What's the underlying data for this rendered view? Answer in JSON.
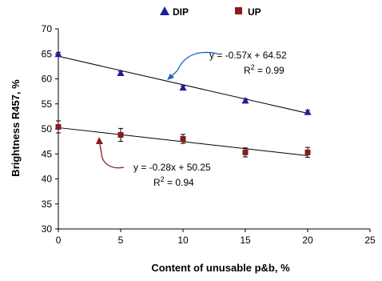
{
  "chart_data": {
    "type": "scatter",
    "xlabel": "Content of unusable p&b, %",
    "ylabel": "Brightness R457, %",
    "xlim": [
      0,
      25
    ],
    "ylim": [
      30,
      70
    ],
    "xticks": [
      "0",
      "5",
      "10",
      "15",
      "20",
      "25"
    ],
    "yticks": [
      "30",
      "35",
      "40",
      "45",
      "50",
      "55",
      "60",
      "65",
      "70"
    ],
    "legend_position": "top",
    "series": [
      {
        "name": "DIP",
        "marker": "triangle",
        "color": "#1f1f99",
        "x": [
          0,
          5,
          10,
          15,
          20
        ],
        "y": [
          65.0,
          61.2,
          58.3,
          55.7,
          53.4
        ],
        "error": [
          0.3,
          0.3,
          0.3,
          0.3,
          0.3
        ],
        "trend": {
          "slope": -0.57,
          "intercept": 64.52
        },
        "equation": "y = -0.57x + 64.52",
        "r2_label": "R",
        "r2_sup": "2",
        "r2_value": " = 0.99"
      },
      {
        "name": "UP",
        "marker": "square",
        "color": "#8b1a1a",
        "x": [
          0,
          5,
          10,
          15,
          20
        ],
        "y": [
          50.4,
          48.8,
          48.0,
          45.3,
          45.3
        ],
        "error": [
          1.2,
          1.3,
          0.9,
          0.9,
          1.0
        ],
        "trend": {
          "slope": -0.28,
          "intercept": 50.25
        },
        "equation": "y = -0.28x + 50.25",
        "r2_label": "R",
        "r2_sup": "2",
        "r2_value": " = 0.94"
      }
    ]
  }
}
